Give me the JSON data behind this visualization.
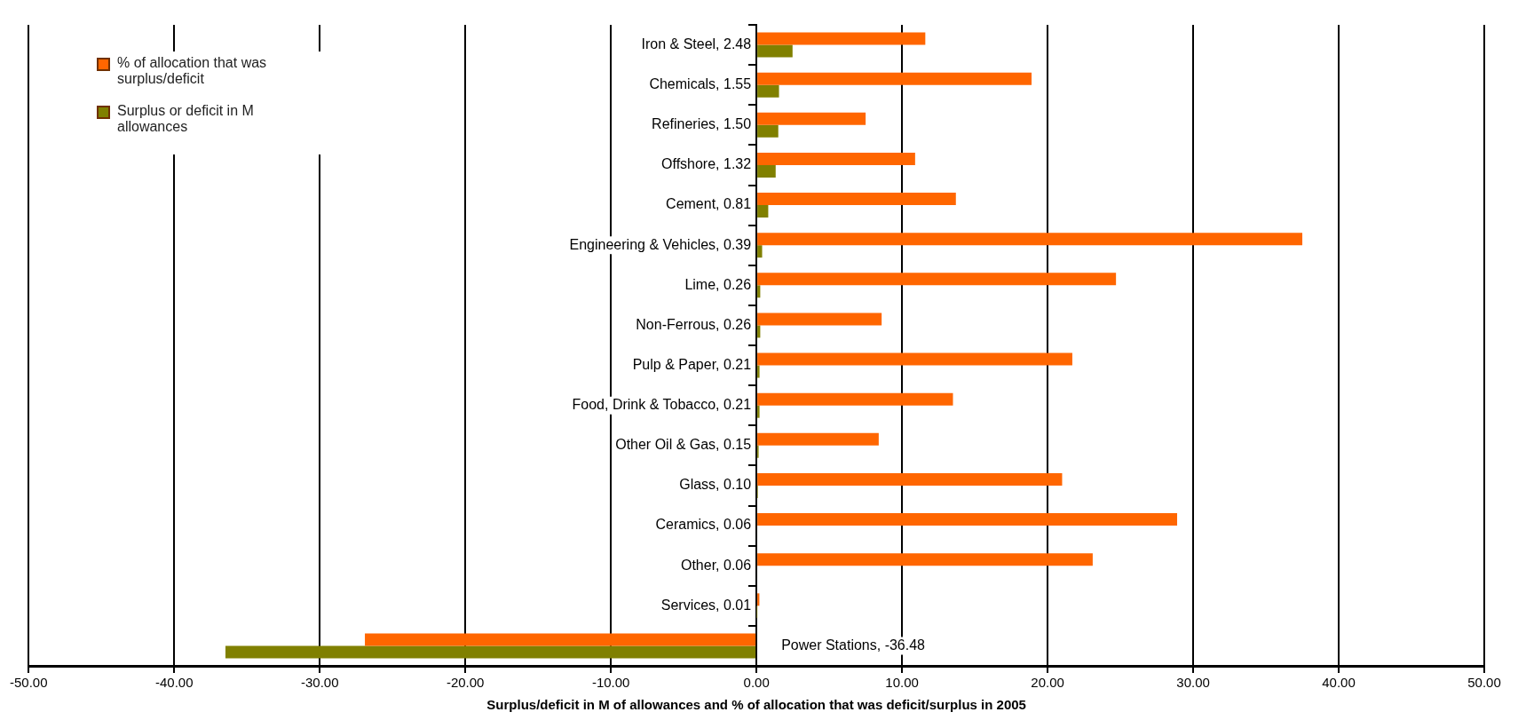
{
  "chart_data": {
    "type": "bar",
    "orientation": "horizontal",
    "xlabel": "Surplus/deficit in M of allowances and % of allocation that was deficit/surplus in 2005",
    "categories": [
      "Iron & Steel, 2.48",
      "Chemicals, 1.55",
      "Refineries, 1.50",
      "Offshore, 1.32",
      "Cement, 0.81",
      "Engineering & Vehicles, 0.39",
      "Lime, 0.26",
      "Non-Ferrous, 0.26",
      "Pulp & Paper, 0.21",
      "Food, Drink & Tobacco, 0.21",
      "Other Oil & Gas, 0.15",
      "Glass, 0.10",
      "Ceramics, 0.06",
      "Other, 0.06",
      "Services, 0.01",
      "Power Stations, -36.48"
    ],
    "series": [
      {
        "name": "% of allocation that was surplus/deficit",
        "color": "#ff6600",
        "values": [
          11.6,
          18.9,
          7.5,
          10.9,
          13.7,
          37.5,
          24.7,
          8.6,
          21.7,
          13.5,
          8.4,
          21.0,
          28.9,
          23.1,
          0.2,
          -26.9
        ]
      },
      {
        "name": "Surplus or deficit in M allowances",
        "color": "#808000",
        "values": [
          2.48,
          1.55,
          1.5,
          1.32,
          0.81,
          0.39,
          0.26,
          0.26,
          0.21,
          0.21,
          0.15,
          0.1,
          0.06,
          0.06,
          0.01,
          -36.48
        ]
      }
    ],
    "xlim": [
      -50,
      50
    ],
    "xticks": [
      {
        "value": -50,
        "label": "-50.00"
      },
      {
        "value": -40,
        "label": "-40.00"
      },
      {
        "value": -30,
        "label": "-30.00"
      },
      {
        "value": -20,
        "label": "-20.00"
      },
      {
        "value": -10,
        "label": "-10.00"
      },
      {
        "value": 0,
        "label": "0.00"
      },
      {
        "value": 10,
        "label": "10.00"
      },
      {
        "value": 20,
        "label": "20.00"
      },
      {
        "value": 30,
        "label": "30.00"
      },
      {
        "value": 40,
        "label": "40.00"
      },
      {
        "value": 50,
        "label": "50.00"
      }
    ],
    "grid": "x",
    "legend": "top left"
  }
}
